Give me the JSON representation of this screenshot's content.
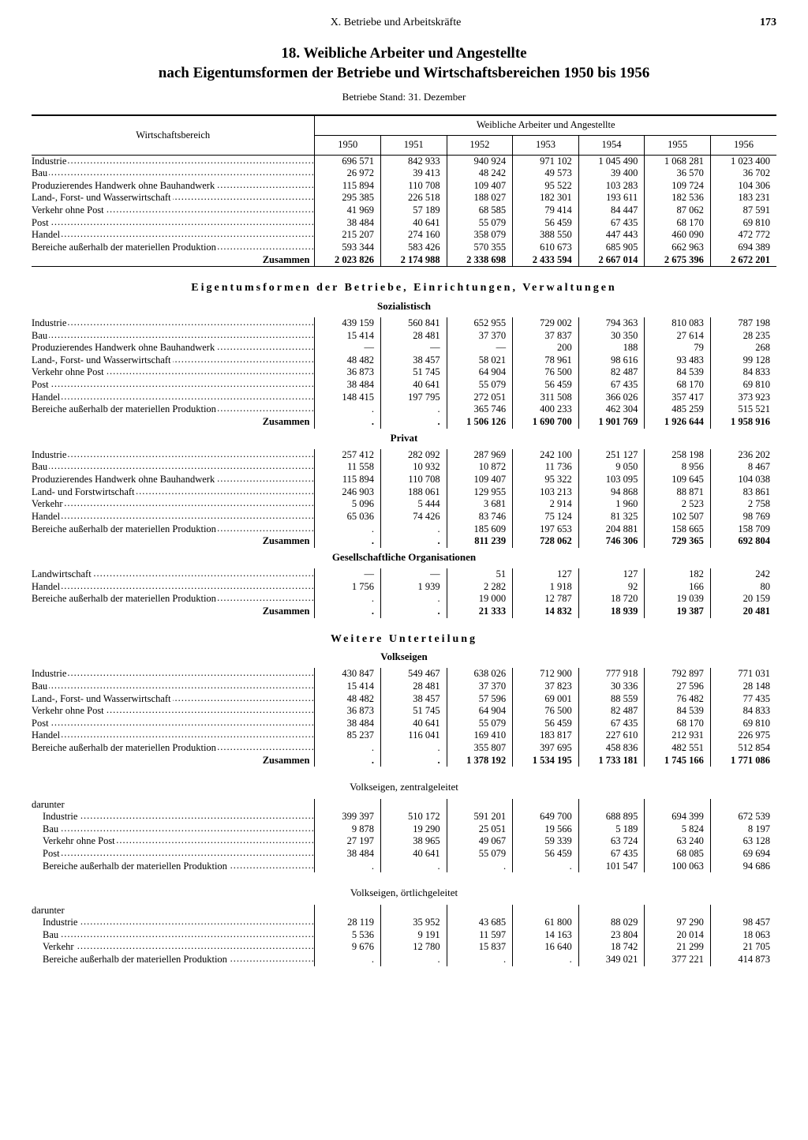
{
  "header": {
    "section": "X. Betriebe und Arbeitskräfte",
    "page": "173"
  },
  "title_line1": "18. Weibliche Arbeiter und Angestellte",
  "title_line2": "nach Eigentumsformen der Betriebe und Wirtschaftsbereichen 1950 bis 1956",
  "subnote": "Betriebe Stand: 31. Dezember",
  "col_label_head": "Wirtschaftsbereich",
  "col_group_head": "Weibliche Arbeiter und Angestellte",
  "years": [
    "1950",
    "1951",
    "1952",
    "1953",
    "1954",
    "1955",
    "1956"
  ],
  "zusammen_label": "Zusammen",
  "darunter_label": "darunter",
  "main_rows": [
    {
      "label": "Industrie",
      "v": [
        "696 571",
        "842 933",
        "940 924",
        "971 102",
        "1 045 490",
        "1 068 281",
        "1 023 400"
      ]
    },
    {
      "label": "Bau",
      "v": [
        "26 972",
        "39 413",
        "48 242",
        "49 573",
        "39 400",
        "36 570",
        "36 702"
      ]
    },
    {
      "label": "Produzierendes Handwerk ohne Bauhandwerk",
      "v": [
        "115 894",
        "110 708",
        "109 407",
        "95 522",
        "103 283",
        "109 724",
        "104 306"
      ]
    },
    {
      "label": "Land-, Forst- und Wasserwirtschaft",
      "v": [
        "295 385",
        "226 518",
        "188 027",
        "182 301",
        "193 611",
        "182 536",
        "183 231"
      ]
    },
    {
      "label": "Verkehr ohne Post",
      "v": [
        "41 969",
        "57 189",
        "68 585",
        "79 414",
        "84 447",
        "87 062",
        "87 591"
      ]
    },
    {
      "label": "Post",
      "v": [
        "38 484",
        "40 641",
        "55 079",
        "56 459",
        "67 435",
        "68 170",
        "69 810"
      ]
    },
    {
      "label": "Handel",
      "v": [
        "215 207",
        "274 160",
        "358 079",
        "388 550",
        "447 443",
        "460 090",
        "472 772"
      ]
    },
    {
      "label": "Bereiche außerhalb der materiellen Produktion",
      "v": [
        "593 344",
        "583 426",
        "570 355",
        "610 673",
        "685 905",
        "662 963",
        "694 389"
      ]
    }
  ],
  "main_sum": [
    "2 023 826",
    "2 174 988",
    "2 338 698",
    "2 433 594",
    "2 667 014",
    "2 675 396",
    "2 672 201"
  ],
  "sec1_title": "Eigentumsformen der Betriebe, Einrichtungen, Verwaltungen",
  "soz_title": "Sozialistisch",
  "soz_rows": [
    {
      "label": "Industrie",
      "v": [
        "439 159",
        "560 841",
        "652 955",
        "729 002",
        "794 363",
        "810 083",
        "787 198"
      ]
    },
    {
      "label": "Bau",
      "v": [
        "15 414",
        "28 481",
        "37 370",
        "37 837",
        "30 350",
        "27 614",
        "28 235"
      ]
    },
    {
      "label": "Produzierendes Handwerk ohne Bauhandwerk",
      "v": [
        "—",
        "—",
        "—",
        "200",
        "188",
        "79",
        "268"
      ]
    },
    {
      "label": "Land-, Forst- und Wasserwirtschaft",
      "v": [
        "48 482",
        "38 457",
        "58 021",
        "78 961",
        "98 616",
        "93 483",
        "99 128"
      ]
    },
    {
      "label": "Verkehr ohne Post",
      "v": [
        "36 873",
        "51 745",
        "64 904",
        "76 500",
        "82 487",
        "84 539",
        "84 833"
      ]
    },
    {
      "label": "Post",
      "v": [
        "38 484",
        "40 641",
        "55 079",
        "56 459",
        "67 435",
        "68 170",
        "69 810"
      ]
    },
    {
      "label": "Handel",
      "v": [
        "148 415",
        "197 795",
        "272 051",
        "311 508",
        "366 026",
        "357 417",
        "373 923"
      ]
    },
    {
      "label": "Bereiche außerhalb der materiellen Produktion",
      "v": [
        ".",
        ".",
        "365 746",
        "400 233",
        "462 304",
        "485 259",
        "515 521"
      ]
    }
  ],
  "soz_sum": [
    ".",
    ".",
    "1 506 126",
    "1 690 700",
    "1 901 769",
    "1 926 644",
    "1 958 916"
  ],
  "priv_title": "Privat",
  "priv_rows": [
    {
      "label": "Industrie",
      "v": [
        "257 412",
        "282 092",
        "287 969",
        "242 100",
        "251 127",
        "258 198",
        "236 202"
      ]
    },
    {
      "label": "Bau",
      "v": [
        "11 558",
        "10 932",
        "10 872",
        "11 736",
        "9 050",
        "8 956",
        "8 467"
      ]
    },
    {
      "label": "Produzierendes Handwerk ohne Bauhandwerk",
      "v": [
        "115 894",
        "110 708",
        "109 407",
        "95 322",
        "103 095",
        "109 645",
        "104 038"
      ]
    },
    {
      "label": "Land- und Forstwirtschaft",
      "v": [
        "246 903",
        "188 061",
        "129 955",
        "103 213",
        "94 868",
        "88 871",
        "83 861"
      ]
    },
    {
      "label": "Verkehr",
      "v": [
        "5 096",
        "5 444",
        "3 681",
        "2 914",
        "1 960",
        "2 523",
        "2 758"
      ]
    },
    {
      "label": "Handel",
      "v": [
        "65 036",
        "74 426",
        "83 746",
        "75 124",
        "81 325",
        "102 507",
        "98 769"
      ]
    },
    {
      "label": "Bereiche außerhalb der materiellen Produktion",
      "v": [
        ".",
        ".",
        "185 609",
        "197 653",
        "204 881",
        "158 665",
        "158 709"
      ]
    }
  ],
  "priv_sum": [
    ".",
    ".",
    "811 239",
    "728 062",
    "746 306",
    "729 365",
    "692 804"
  ],
  "ges_title": "Gesellschaftliche Organisationen",
  "ges_rows": [
    {
      "label": "Landwirtschaft",
      "v": [
        "—",
        "—",
        "51",
        "127",
        "127",
        "182",
        "242"
      ]
    },
    {
      "label": "Handel",
      "v": [
        "1 756",
        "1 939",
        "2 282",
        "1 918",
        "92",
        "166",
        "80"
      ]
    },
    {
      "label": "Bereiche außerhalb der materiellen Produktion",
      "v": [
        ".",
        ".",
        "19 000",
        "12 787",
        "18 720",
        "19 039",
        "20 159"
      ]
    }
  ],
  "ges_sum": [
    ".",
    ".",
    "21 333",
    "14 832",
    "18 939",
    "19 387",
    "20 481"
  ],
  "sec2_title": "Weitere Unterteilung",
  "volk_title": "Volkseigen",
  "volk_rows": [
    {
      "label": "Industrie",
      "v": [
        "430 847",
        "549 467",
        "638 026",
        "712 900",
        "777 918",
        "792 897",
        "771 031"
      ]
    },
    {
      "label": "Bau",
      "v": [
        "15 414",
        "28 481",
        "37 370",
        "37 823",
        "30 336",
        "27 596",
        "28 148"
      ]
    },
    {
      "label": "Land-, Forst- und Wasserwirtschaft",
      "v": [
        "48 482",
        "38 457",
        "57 596",
        "69 001",
        "88 559",
        "76 482",
        "77 435"
      ]
    },
    {
      "label": "Verkehr ohne Post",
      "v": [
        "36 873",
        "51 745",
        "64 904",
        "76 500",
        "82 487",
        "84 539",
        "84 833"
      ]
    },
    {
      "label": "Post",
      "v": [
        "38 484",
        "40 641",
        "55 079",
        "56 459",
        "67 435",
        "68 170",
        "69 810"
      ]
    },
    {
      "label": "Handel",
      "v": [
        "85 237",
        "116 041",
        "169 410",
        "183 817",
        "227 610",
        "212 931",
        "226 975"
      ]
    },
    {
      "label": "Bereiche außerhalb der materiellen Produktion",
      "v": [
        ".",
        ".",
        "355 807",
        "397 695",
        "458 836",
        "482 551",
        "512 854"
      ]
    }
  ],
  "volk_sum": [
    ".",
    ".",
    "1 378 192",
    "1 534 195",
    "1 733 181",
    "1 745 166",
    "1 771 086"
  ],
  "zentral_title": "Volkseigen, zentralgeleitet",
  "zentral_rows": [
    {
      "label": "Industrie",
      "v": [
        "399 397",
        "510 172",
        "591 201",
        "649 700",
        "688 895",
        "694 399",
        "672 539"
      ]
    },
    {
      "label": "Bau",
      "v": [
        "9 878",
        "19 290",
        "25 051",
        "19 566",
        "5 189",
        "5 824",
        "8 197"
      ]
    },
    {
      "label": "Verkehr ohne Post",
      "v": [
        "27 197",
        "38 965",
        "49 067",
        "59 339",
        "63 724",
        "63 240",
        "63 128"
      ]
    },
    {
      "label": "Post",
      "v": [
        "38 484",
        "40 641",
        "55 079",
        "56 459",
        "67 435",
        "68 085",
        "69 694"
      ]
    },
    {
      "label": "Bereiche außerhalb der materiellen Produktion",
      "v": [
        ".",
        ".",
        ".",
        ".",
        "101 547",
        "100 063",
        "94 686"
      ]
    }
  ],
  "ort_title": "Volkseigen, örtlichgeleitet",
  "ort_rows": [
    {
      "label": "Industrie",
      "v": [
        "28 119",
        "35 952",
        "43 685",
        "61 800",
        "88 029",
        "97 290",
        "98 457"
      ]
    },
    {
      "label": "Bau",
      "v": [
        "5 536",
        "9 191",
        "11 597",
        "14 163",
        "23 804",
        "20 014",
        "18 063"
      ]
    },
    {
      "label": "Verkehr",
      "v": [
        "9 676",
        "12 780",
        "15 837",
        "16 640",
        "18 742",
        "21 299",
        "21 705"
      ]
    },
    {
      "label": "Bereiche außerhalb der materiellen Produktion",
      "v": [
        ".",
        ".",
        ".",
        ".",
        "349 021",
        "377 221",
        "414 873"
      ]
    }
  ]
}
